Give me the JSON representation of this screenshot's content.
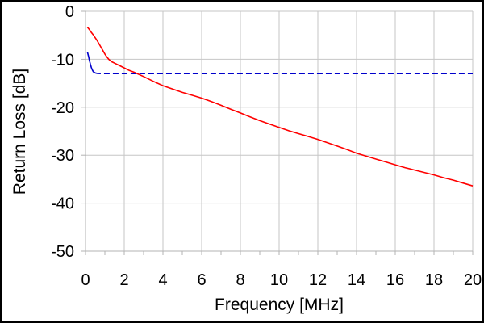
{
  "figure": {
    "background": "#ffffff",
    "border_color": "#000000"
  },
  "chart_data": {
    "type": "line",
    "title": "",
    "xlabel": "Frequency [MHz]",
    "ylabel": "Return Loss [dB]",
    "xlim": [
      0,
      20
    ],
    "ylim": [
      -50,
      0
    ],
    "x_major_ticks": [
      0,
      2,
      4,
      6,
      8,
      10,
      12,
      14,
      16,
      18,
      20
    ],
    "x_minor_tick_step": 1,
    "y_ticks": [
      0,
      -10,
      -20,
      -30,
      -40,
      -50
    ],
    "grid": {
      "on": true,
      "color": "#c6c6c6",
      "x_step": 2,
      "y_step": 10
    },
    "axis_color": "#b3b3b3",
    "text_color": "#000000",
    "legend": "none",
    "series": [
      {
        "name": "red-return-loss-curve",
        "color": "#ff0000",
        "style": "solid",
        "x": [
          0.1,
          0.2,
          0.3,
          0.4,
          0.5,
          0.6,
          0.7,
          0.8,
          0.9,
          1.0,
          1.1,
          1.2,
          1.35,
          1.5,
          1.75,
          2.0,
          2.25,
          2.5,
          3.0,
          3.5,
          4.0,
          4.5,
          5.0,
          5.5,
          6.0,
          6.5,
          7.0,
          7.5,
          8.0,
          8.5,
          9.0,
          9.5,
          10.0,
          10.5,
          11.0,
          11.5,
          12.0,
          12.5,
          13.0,
          13.5,
          14.0,
          14.5,
          15.0,
          15.5,
          16.0,
          16.5,
          17.0,
          17.5,
          18.0,
          18.5,
          19.0,
          19.5,
          20.0
        ],
        "y": [
          -3.3,
          -3.8,
          -4.4,
          -4.9,
          -5.5,
          -6.1,
          -6.8,
          -7.5,
          -8.2,
          -8.9,
          -9.5,
          -10.0,
          -10.5,
          -10.8,
          -11.3,
          -11.8,
          -12.3,
          -12.7,
          -13.6,
          -14.6,
          -15.5,
          -16.2,
          -16.9,
          -17.5,
          -18.1,
          -18.8,
          -19.6,
          -20.4,
          -21.2,
          -22.0,
          -22.8,
          -23.5,
          -24.2,
          -24.9,
          -25.5,
          -26.1,
          -26.7,
          -27.4,
          -28.1,
          -28.8,
          -29.6,
          -30.2,
          -30.8,
          -31.4,
          -32.0,
          -32.6,
          -33.1,
          -33.6,
          -34.1,
          -34.7,
          -35.2,
          -35.8,
          -36.4
        ]
      },
      {
        "name": "blue-flat-limit-line",
        "color": "#0000cc",
        "style": "dashed",
        "dash_pattern": [
          7,
          4
        ],
        "dash_solid_until_x": 0.5,
        "x": [
          0.1,
          0.15,
          0.2,
          0.25,
          0.3,
          0.35,
          0.4,
          0.5,
          0.6,
          0.8,
          1.0,
          20.0
        ],
        "y": [
          -8.5,
          -9.3,
          -10.2,
          -11.0,
          -11.7,
          -12.2,
          -12.6,
          -12.85,
          -12.95,
          -13.0,
          -13.0,
          -13.0
        ]
      }
    ]
  }
}
